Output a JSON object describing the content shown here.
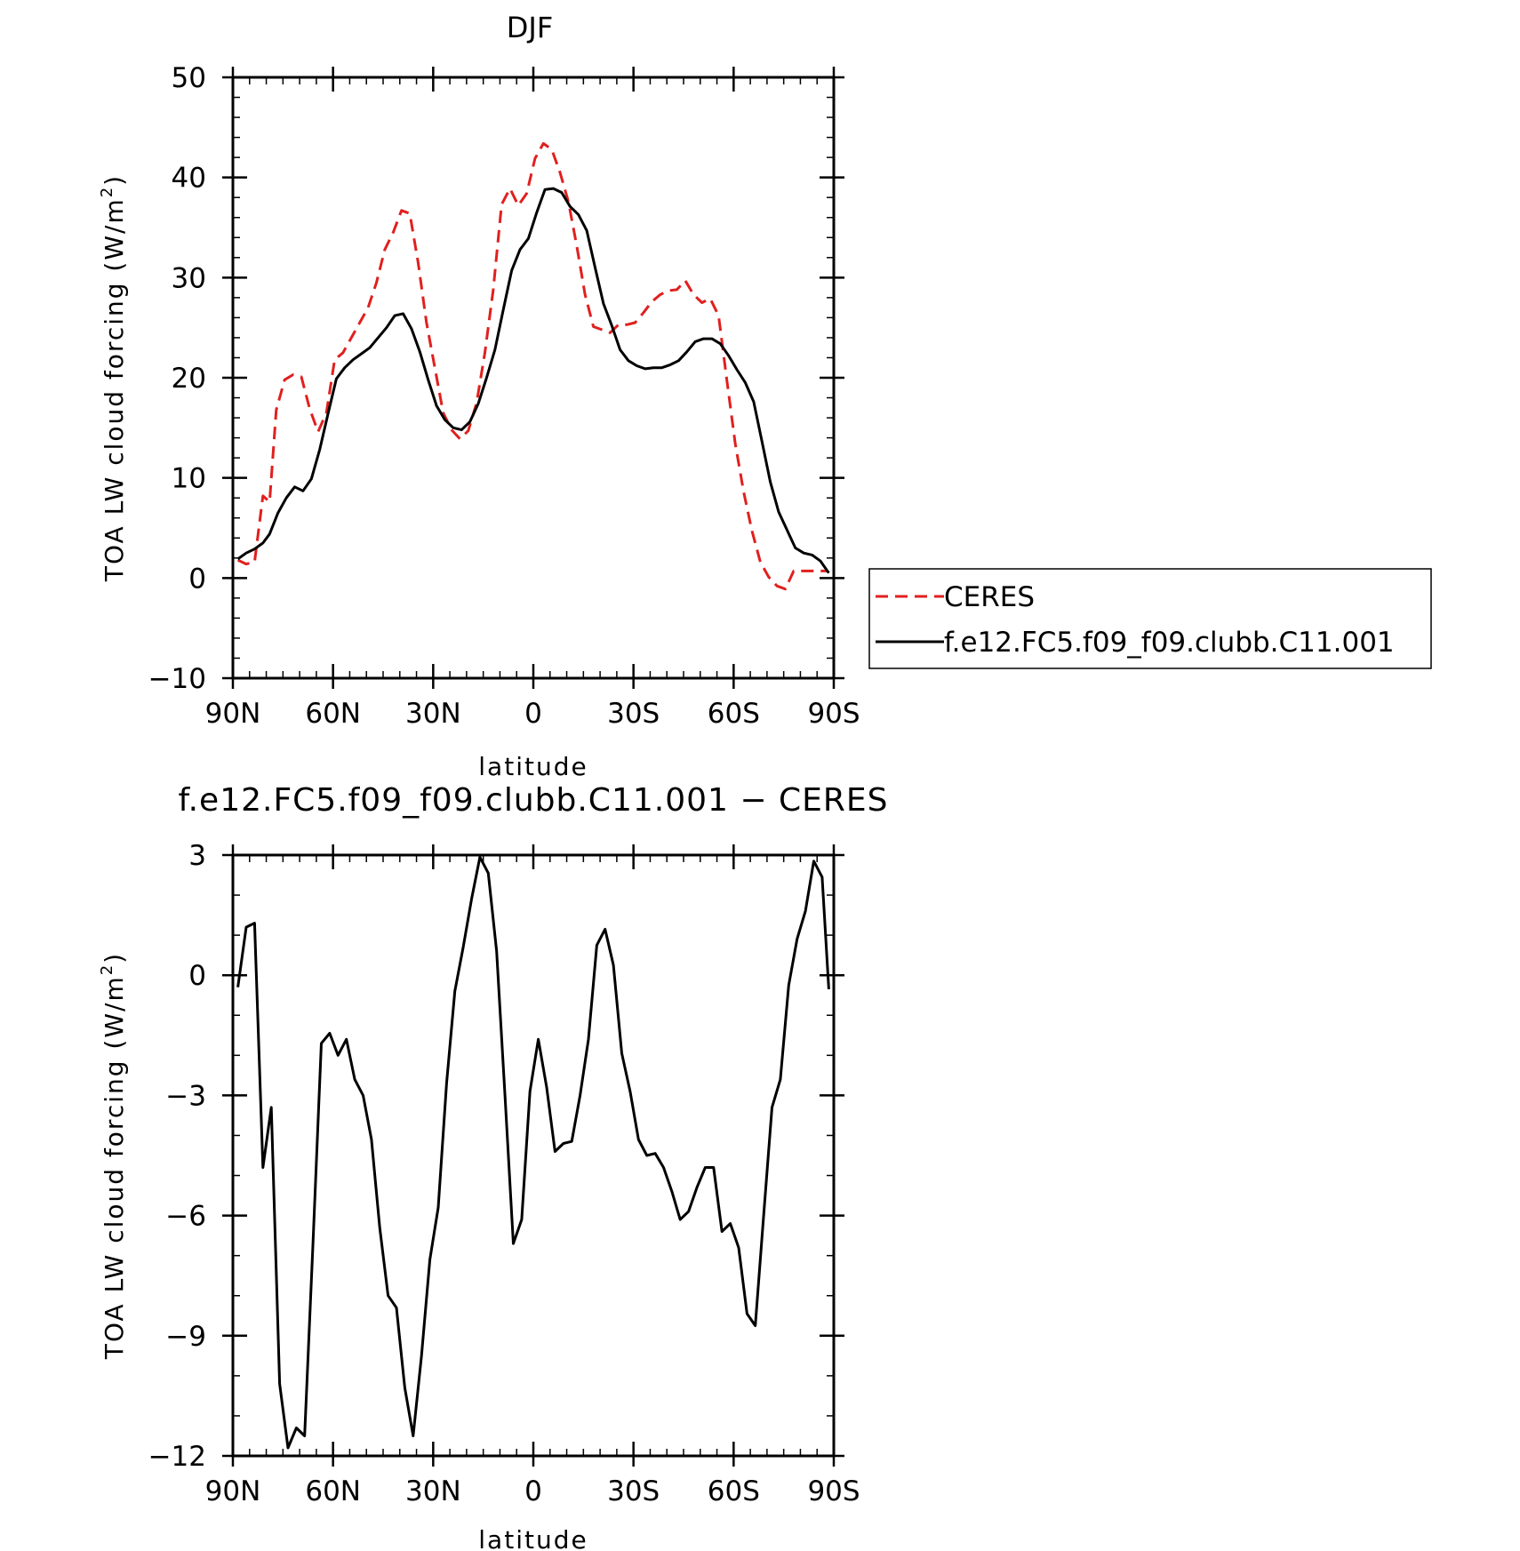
{
  "chart_data": [
    {
      "type": "line",
      "title": "DJF",
      "xlabel": "latitude",
      "ylabel": "TOA LW cloud forcing (W/m",
      "ylabel_sup": "2",
      "ylabel_close": ")",
      "xlim": [
        -90,
        90
      ],
      "ylim": [
        -10,
        50
      ],
      "xticks": [
        -90,
        -60,
        -30,
        0,
        30,
        60,
        90
      ],
      "xticklabels": [
        "90N",
        "60N",
        "30N",
        "0",
        "30S",
        "60S",
        "90S"
      ],
      "yticks": [
        -10,
        0,
        10,
        20,
        30,
        40,
        50
      ],
      "yticklabels": [
        "−10",
        "0",
        "10",
        "20",
        "30",
        "40",
        "50"
      ],
      "legend": {
        "placement": "right-outside",
        "border": true
      },
      "series": [
        {
          "name": "CERES",
          "color": "#e0201e",
          "dash": true,
          "x": [
            -88.5,
            -86,
            -83.5,
            -81,
            -79,
            -77,
            -74.5,
            -72,
            -69.5,
            -67,
            -64.5,
            -62,
            -59.5,
            -57,
            -54.5,
            -52,
            -49.5,
            -47,
            -44.5,
            -42,
            -39.5,
            -37,
            -34.5,
            -32,
            -29.5,
            -27,
            -24.5,
            -22,
            -19.5,
            -17,
            -14.5,
            -12,
            -9.5,
            -7,
            -4.5,
            -2,
            0.5,
            3,
            5.5,
            8,
            10.5,
            13,
            15.5,
            18,
            20.5,
            23,
            25.5,
            28,
            30.5,
            33,
            35.5,
            38,
            40.5,
            43,
            45.5,
            48,
            50.5,
            53,
            55.5,
            58,
            60.5,
            63,
            65.5,
            68,
            70.5,
            73,
            75.5,
            78,
            80.5,
            83,
            85.5,
            88
          ],
          "y": [
            1.8,
            1.4,
            1.6,
            8.2,
            7.6,
            16.8,
            19.8,
            20.3,
            20.1,
            16.9,
            14.6,
            16.5,
            21.8,
            22.5,
            24.0,
            25.5,
            27.0,
            29.5,
            32.8,
            34.5,
            36.7,
            36.4,
            31.5,
            25.5,
            21.0,
            16.5,
            14.8,
            13.9,
            14.7,
            17.5,
            22.5,
            28.8,
            37.3,
            38.9,
            37.2,
            38.4,
            41.9,
            43.4,
            42.8,
            40.5,
            37.6,
            33.2,
            28.3,
            25.1,
            24.8,
            24.5,
            25.3,
            25.3,
            25.5,
            26.5,
            27.6,
            28.3,
            28.7,
            28.8,
            29.7,
            28.3,
            27.5,
            27.9,
            26.2,
            19.7,
            13.4,
            8.6,
            4.7,
            1.6,
            0.1,
            -0.8,
            -1.1,
            0.7,
            0.7,
            0.7,
            0.7,
            0.7
          ]
        },
        {
          "name": "f.e12.FC5.f09_f09.clubb.C11.001",
          "color": "#000000",
          "dash": false,
          "x": [
            -88.5,
            -86,
            -83.5,
            -81,
            -79,
            -76.5,
            -74,
            -71.5,
            -69,
            -66.5,
            -64,
            -61.5,
            -59,
            -56.5,
            -54,
            -51.5,
            -49,
            -46.5,
            -44,
            -41.5,
            -39,
            -36.5,
            -34,
            -31.5,
            -29,
            -26.5,
            -24,
            -21.5,
            -19,
            -16.5,
            -14,
            -11.5,
            -9,
            -6.5,
            -4,
            -1.5,
            1,
            3.5,
            6,
            8.5,
            11,
            13.5,
            16,
            18.5,
            21,
            23.5,
            26,
            28.5,
            31,
            33.5,
            36,
            38.5,
            41,
            43.5,
            46,
            48.5,
            51,
            53.5,
            56,
            58.5,
            61,
            63.5,
            66,
            68.5,
            71,
            73.5,
            76,
            78.5,
            81,
            83.5,
            86,
            88.5
          ],
          "y": [
            1.9,
            2.5,
            2.9,
            3.5,
            4.4,
            6.5,
            8.0,
            9.1,
            8.7,
            9.9,
            12.8,
            16.4,
            19.9,
            21.0,
            21.8,
            22.4,
            23.0,
            24.0,
            25.0,
            26.2,
            26.4,
            24.9,
            22.6,
            19.8,
            17.2,
            15.8,
            15.0,
            14.8,
            15.6,
            17.4,
            20.0,
            22.8,
            26.8,
            30.7,
            32.8,
            33.9,
            36.5,
            38.8,
            38.9,
            38.5,
            37.1,
            36.3,
            34.7,
            31.0,
            27.4,
            25.2,
            22.8,
            21.7,
            21.2,
            20.9,
            21.0,
            21.0,
            21.3,
            21.7,
            22.6,
            23.6,
            23.9,
            23.9,
            23.4,
            22.2,
            20.8,
            19.5,
            17.6,
            13.6,
            9.6,
            6.6,
            4.8,
            3.0,
            2.5,
            2.3,
            1.7,
            0.5
          ]
        }
      ]
    },
    {
      "type": "line",
      "title": "f.e12.FC5.f09_f09.clubb.C11.001 − CERES",
      "xlabel": "latitude",
      "ylabel": "TOA LW cloud forcing (W/m",
      "ylabel_sup": "2",
      "ylabel_close": ")",
      "xlim": [
        -90,
        90
      ],
      "ylim": [
        -12,
        3
      ],
      "xticks": [
        -90,
        -60,
        -30,
        0,
        30,
        60,
        90
      ],
      "xticklabels": [
        "90N",
        "60N",
        "30N",
        "0",
        "30S",
        "60S",
        "90S"
      ],
      "yticks": [
        -12,
        -9,
        -6,
        -3,
        0,
        3
      ],
      "yticklabels": [
        "−12",
        "−9",
        "−6",
        "−3",
        "0",
        "3"
      ],
      "series": [
        {
          "name": "",
          "color": "#000000",
          "dash": false,
          "x": [
            -88.5,
            -86,
            -83.5,
            -81,
            -78.5,
            -76,
            -73.5,
            -71,
            -68.5,
            -66,
            -63.5,
            -61,
            -58.5,
            -56,
            -53.5,
            -51,
            -48.5,
            -46,
            -43.5,
            -41,
            -38.5,
            -36,
            -33.5,
            -31,
            -28.5,
            -26,
            -23.5,
            -21,
            -18.5,
            -16,
            -13.5,
            -11,
            -8.5,
            -6,
            -3.5,
            -1,
            1.5,
            4,
            6.5,
            9,
            11.5,
            14,
            16.5,
            19,
            21.5,
            24,
            26.5,
            29,
            31.5,
            34,
            36.5,
            39,
            41.5,
            44,
            46.5,
            49,
            51.5,
            54,
            56.5,
            59,
            61.5,
            64,
            66.5,
            69,
            71.5,
            74,
            76.5,
            79,
            81.5,
            84,
            86.5,
            88.5
          ],
          "y": [
            -0.3,
            1.2,
            1.3,
            -4.8,
            -3.3,
            -10.2,
            -11.8,
            -11.3,
            -11.5,
            -6.7,
            -1.7,
            -1.45,
            -2.0,
            -1.6,
            -2.6,
            -3.0,
            -4.1,
            -6.3,
            -8.0,
            -8.3,
            -10.3,
            -11.5,
            -9.5,
            -7.1,
            -5.8,
            -2.7,
            -0.4,
            0.7,
            1.9,
            2.95,
            2.55,
            0.6,
            -3.0,
            -6.7,
            -6.1,
            -2.9,
            -1.6,
            -2.8,
            -4.4,
            -4.2,
            -4.15,
            -3.0,
            -1.6,
            0.75,
            1.15,
            0.25,
            -1.95,
            -2.9,
            -4.1,
            -4.5,
            -4.45,
            -4.8,
            -5.4,
            -6.1,
            -5.9,
            -5.3,
            -4.8,
            -4.8,
            -6.4,
            -6.2,
            -6.8,
            -8.45,
            -8.75,
            -6.0,
            -3.3,
            -2.6,
            -0.25,
            0.9,
            1.6,
            2.85,
            2.45,
            -0.35
          ]
        }
      ]
    }
  ]
}
